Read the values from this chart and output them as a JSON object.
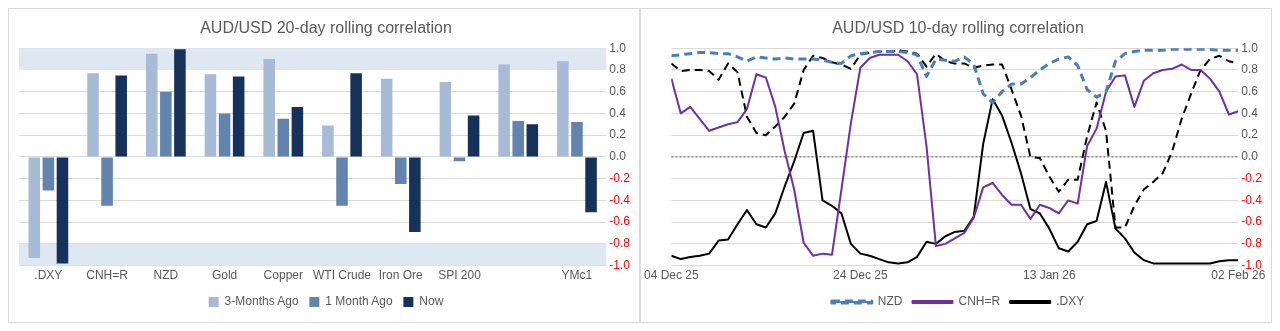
{
  "chart_data": [
    {
      "type": "bar",
      "title": "AUD/USD 20-day rolling correlation",
      "categories": [
        ".DXY",
        "CNH=R",
        "NZD",
        "Gold",
        "Copper",
        "WTI Crude",
        "Iron Ore",
        "SPI 200",
        null,
        "YMc1"
      ],
      "series": [
        {
          "name": "3-Months Ago",
          "color": "#a7bad6",
          "values": [
            -0.93,
            0.77,
            0.95,
            0.76,
            0.9,
            0.29,
            0.72,
            0.69,
            0.85,
            0.88
          ]
        },
        {
          "name": "1 Month Ago",
          "color": "#6384ae",
          "values": [
            -0.31,
            -0.45,
            0.6,
            0.4,
            0.35,
            -0.45,
            -0.25,
            -0.04,
            0.33,
            0.32
          ]
        },
        {
          "name": "Now",
          "color": "#17325a",
          "values": [
            -0.98,
            0.75,
            0.99,
            0.74,
            0.46,
            0.77,
            -0.69,
            0.38,
            0.3,
            -0.51
          ]
        }
      ],
      "ylim": [
        -1,
        1
      ],
      "yticks": [
        {
          "value": -1,
          "label": "-1.0"
        },
        -0.8,
        -0.6,
        -0.4,
        -0.2,
        {
          "value": 0,
          "label": "0.0"
        },
        0.2,
        0.4,
        0.6,
        0.8,
        {
          "value": 1,
          "label": "1.0"
        }
      ],
      "bands": [
        {
          "axis": "y",
          "from": 0.8,
          "to": 1,
          "color": "#dfe7f2"
        },
        {
          "axis": "y",
          "from": -1,
          "to": -0.8,
          "color": "#dfe7f2"
        }
      ],
      "grid": "y",
      "legend": "bottom"
    },
    {
      "type": "line",
      "title": "AUD/USD 10-day rolling correlation",
      "x": [
        "2025-12-04",
        "2025-12-05",
        "2025-12-06",
        "2025-12-07",
        "2025-12-08",
        "2025-12-09",
        "2025-12-10",
        "2025-12-11",
        "2025-12-12",
        "2025-12-13",
        "2025-12-14",
        "2025-12-15",
        "2025-12-16",
        "2025-12-17",
        "2025-12-18",
        "2025-12-19",
        "2025-12-20",
        "2025-12-21",
        "2025-12-22",
        "2025-12-23",
        "2025-12-24",
        "2025-12-25",
        "2025-12-26",
        "2025-12-27",
        "2025-12-28",
        "2025-12-29",
        "2025-12-30",
        "2025-12-31",
        "2026-01-01",
        "2026-01-02",
        "2026-01-03",
        "2026-01-04",
        "2026-01-05",
        "2026-01-06",
        "2026-01-07",
        "2026-01-08",
        "2026-01-09",
        "2026-01-10",
        "2026-01-11",
        "2026-01-12",
        "2026-01-13",
        "2026-01-14",
        "2026-01-15",
        "2026-01-16",
        "2026-01-17",
        "2026-01-18",
        "2026-01-19",
        "2026-01-20",
        "2026-01-21",
        "2026-01-22",
        "2026-01-23",
        "2026-01-24",
        "2026-01-25",
        "2026-01-26",
        "2026-01-27",
        "2026-01-28",
        "2026-01-29",
        "2026-01-30",
        "2026-01-31",
        "2026-02-01",
        "2026-02-02"
      ],
      "series": [
        {
          "name": "NZD",
          "color": "#4a7ebb",
          "line_style": "dashed",
          "values": [
            0.93,
            0.94,
            0.95,
            0.96,
            0.96,
            0.95,
            0.95,
            0.92,
            0.88,
            0.92,
            0.91,
            0.9,
            0.91,
            0.9,
            0.9,
            0.9,
            0.89,
            0.87,
            0.86,
            0.93,
            0.95,
            0.96,
            0.97,
            0.97,
            0.97,
            0.96,
            0.94,
            0.74,
            0.9,
            0.89,
            0.88,
            0.92,
            0.85,
            0.58,
            0.5,
            0.6,
            0.67,
            0.67,
            0.73,
            0.8,
            0.86,
            0.9,
            0.92,
            0.84,
            0.62,
            0.55,
            0.6,
            0.88,
            0.95,
            0.97,
            0.98,
            0.98,
            0.98,
            0.99,
            0.99,
            0.99,
            0.99,
            0.99,
            0.98,
            0.98,
            0.98
          ]
        },
        {
          "name": "CNH=R",
          "color": "#7030a0",
          "line_style": "solid",
          "values": [
            0.72,
            0.4,
            0.46,
            0.35,
            0.24,
            0.27,
            0.3,
            0.32,
            0.44,
            0.76,
            0.73,
            0.46,
            0.05,
            -0.3,
            -0.79,
            -0.91,
            -0.89,
            -0.9,
            -0.3,
            0.31,
            0.82,
            0.91,
            0.94,
            0.94,
            0.94,
            0.88,
            0.76,
            0.1,
            -0.82,
            -0.8,
            -0.75,
            -0.7,
            -0.56,
            -0.28,
            -0.24,
            -0.35,
            -0.44,
            -0.44,
            -0.57,
            -0.44,
            -0.47,
            -0.52,
            -0.4,
            -0.43,
            0.1,
            0.26,
            0.6,
            0.74,
            0.75,
            0.46,
            0.7,
            0.77,
            0.8,
            0.81,
            0.85,
            0.8,
            0.8,
            0.72,
            0.6,
            0.39,
            0.42
          ]
        },
        {
          "name": ".DXY",
          "color": "#000000",
          "line_style": "solid",
          "values": [
            -0.91,
            -0.94,
            -0.92,
            -0.91,
            -0.89,
            -0.77,
            -0.76,
            -0.62,
            -0.49,
            -0.62,
            -0.65,
            -0.52,
            -0.27,
            -0.04,
            0.22,
            0.24,
            -0.4,
            -0.45,
            -0.52,
            -0.8,
            -0.89,
            -0.91,
            -0.94,
            -0.97,
            -0.98,
            -0.97,
            -0.92,
            -0.78,
            -0.8,
            -0.73,
            -0.69,
            -0.68,
            -0.55,
            0.12,
            0.53,
            0.38,
            0.13,
            -0.15,
            -0.48,
            -0.52,
            -0.66,
            -0.84,
            -0.87,
            -0.78,
            -0.62,
            -0.59,
            -0.23,
            -0.66,
            -0.75,
            -0.88,
            -0.95,
            -0.98,
            -0.98,
            -0.98,
            -0.98,
            -0.98,
            -0.98,
            -0.98,
            -0.96,
            -0.95,
            -0.95
          ]
        },
        {
          "color": "#000000",
          "line_style": "dashed",
          "values": [
            0.86,
            0.79,
            0.8,
            0.8,
            0.79,
            0.71,
            0.86,
            0.78,
            0.37,
            0.22,
            0.2,
            0.28,
            0.37,
            0.49,
            0.8,
            0.93,
            0.91,
            0.87,
            0.85,
            0.81,
            0.94,
            0.96,
            0.97,
            0.97,
            0.98,
            0.97,
            0.95,
            0.83,
            0.95,
            0.88,
            0.86,
            0.86,
            0.82,
            0.84,
            0.85,
            0.85,
            0.62,
            0.38,
            0.0,
            -0.01,
            -0.18,
            -0.32,
            -0.21,
            -0.21,
            0.19,
            0.5,
            0.24,
            -0.65,
            -0.65,
            -0.45,
            -0.3,
            -0.23,
            -0.15,
            0.05,
            0.35,
            0.58,
            0.8,
            0.9,
            0.93,
            0.88,
            0.86
          ]
        }
      ],
      "xlim": [
        "2025-12-04",
        "2026-02-02"
      ],
      "xticks": [
        {
          "value": "2025-12-04",
          "label": "04 Dec 25"
        },
        {
          "value": "2025-12-24",
          "label": "24 Dec 25"
        },
        {
          "value": "2026-01-13",
          "label": "13 Jan 26"
        },
        {
          "value": "2026-02-02",
          "label": "02 Feb 26"
        }
      ],
      "ylim": [
        -1,
        1
      ],
      "yticks": [
        {
          "value": -1,
          "label": "-1.0"
        },
        -0.8,
        -0.6,
        -0.4,
        -0.2,
        {
          "value": 0,
          "label": "0.0"
        },
        0.2,
        0.4,
        0.6,
        0.8,
        {
          "value": 1,
          "label": "1.0"
        }
      ],
      "ref_lines": [
        {
          "axis": "y",
          "value": 0,
          "color": "#595959",
          "line_style": "dotted"
        }
      ],
      "grid": "y",
      "legend": "bottom",
      "marker": "none"
    }
  ]
}
